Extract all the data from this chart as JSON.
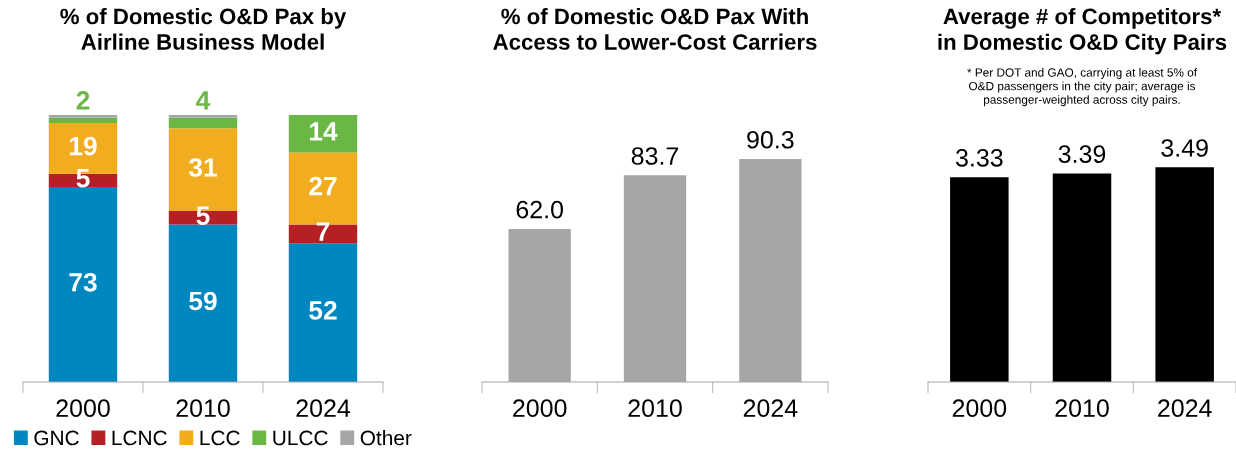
{
  "chart_data": [
    {
      "type": "bar",
      "title": "% of Domestic O&D Pax by\nAirline Business Model",
      "categories": [
        "2000",
        "2010",
        "2024"
      ],
      "stacked": true,
      "ylim": [
        0,
        100
      ],
      "legend": "bottom",
      "series": [
        {
          "name": "GNC",
          "color": "#0087c0",
          "values": [
            73,
            59,
            52
          ],
          "value_labels": [
            "73",
            "59",
            "52"
          ]
        },
        {
          "name": "LCNC",
          "color": "#b52025",
          "values": [
            5,
            5,
            7
          ],
          "value_labels": [
            "5",
            "5",
            "7"
          ]
        },
        {
          "name": "LCC",
          "color": "#f2ac1f",
          "values": [
            19,
            31,
            27
          ],
          "value_labels": [
            "19",
            "31",
            "27"
          ]
        },
        {
          "name": "ULCC",
          "color": "#6bb745",
          "values": [
            2,
            4,
            14
          ],
          "value_labels": [
            "2",
            "4",
            "14"
          ]
        },
        {
          "name": "Other",
          "color": "#a6a6a6",
          "values": [
            1,
            1,
            0
          ],
          "value_labels": [
            null,
            null,
            null
          ]
        }
      ]
    },
    {
      "type": "bar",
      "title": "% of Domestic O&D Pax With\nAccess to Lower-Cost Carriers",
      "categories": [
        "2000",
        "2010",
        "2024"
      ],
      "series": [
        {
          "color": "#a6a6a6",
          "values": [
            62.0,
            83.7,
            90.3
          ],
          "value_labels": [
            "62.0",
            "83.7",
            "90.3"
          ]
        }
      ]
    },
    {
      "type": "bar",
      "title": "Average # of Competitors*\nin Domestic O&D City Pairs",
      "categories": [
        "2000",
        "2010",
        "2024"
      ],
      "annotations": [
        "* Per DOT and GAO, carrying at least 5% of\nO&D passengers in the city pair; average is\npassenger-weighted across city pairs."
      ],
      "series": [
        {
          "color": "#000000",
          "values": [
            3.33,
            3.39,
            3.49
          ],
          "value_labels": [
            "3.33",
            "3.39",
            "3.49"
          ]
        }
      ]
    }
  ]
}
